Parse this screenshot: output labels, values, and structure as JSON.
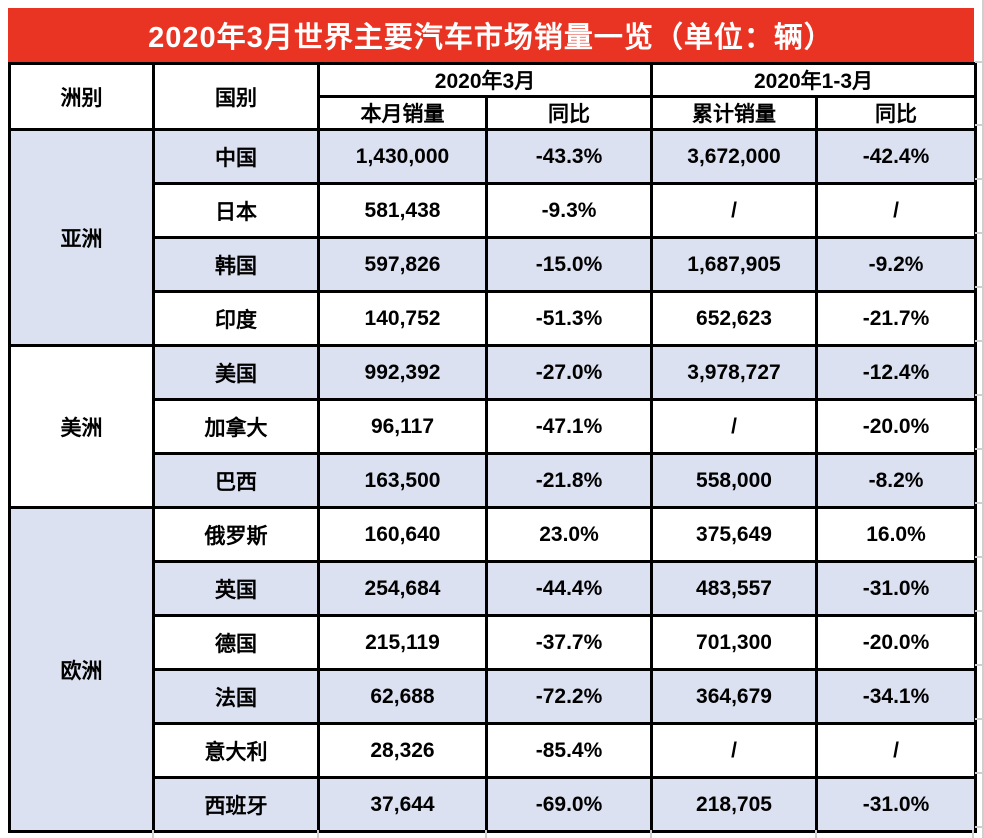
{
  "title": "2020年3月世界主要汽车市场销量一览（单位：辆）",
  "colors": {
    "banner_red": "#E93323",
    "row_shade": "#DCE1F1",
    "border": "#000000",
    "gridline": "#CFCFCF"
  },
  "header": {
    "continent": "洲别",
    "country": "国别",
    "march_group": "2020年3月",
    "q1_group": "2020年1-3月",
    "monthly_sales": "本月销量",
    "monthly_yoy": "同比",
    "cumulative_sales": "累计销量",
    "cumulative_yoy": "同比"
  },
  "groups": [
    {
      "continent": "亚洲",
      "rows": [
        {
          "country": "中国",
          "monthly": "1,430,000",
          "monthly_yoy": "-43.3%",
          "cumulative": "3,672,000",
          "cumulative_yoy": "-42.4%"
        },
        {
          "country": "日本",
          "monthly": "581,438",
          "monthly_yoy": "-9.3%",
          "cumulative": "/",
          "cumulative_yoy": "/"
        },
        {
          "country": "韩国",
          "monthly": "597,826",
          "monthly_yoy": "-15.0%",
          "cumulative": "1,687,905",
          "cumulative_yoy": "-9.2%"
        },
        {
          "country": "印度",
          "monthly": "140,752",
          "monthly_yoy": "-51.3%",
          "cumulative": "652,623",
          "cumulative_yoy": "-21.7%"
        }
      ]
    },
    {
      "continent": "美洲",
      "rows": [
        {
          "country": "美国",
          "monthly": "992,392",
          "monthly_yoy": "-27.0%",
          "cumulative": "3,978,727",
          "cumulative_yoy": "-12.4%"
        },
        {
          "country": "加拿大",
          "monthly": "96,117",
          "monthly_yoy": "-47.1%",
          "cumulative": "/",
          "cumulative_yoy": "-20.0%"
        },
        {
          "country": "巴西",
          "monthly": "163,500",
          "monthly_yoy": "-21.8%",
          "cumulative": "558,000",
          "cumulative_yoy": "-8.2%"
        }
      ]
    },
    {
      "continent": "欧洲",
      "rows": [
        {
          "country": "俄罗斯",
          "monthly": "160,640",
          "monthly_yoy": "23.0%",
          "cumulative": "375,649",
          "cumulative_yoy": "16.0%"
        },
        {
          "country": "英国",
          "monthly": "254,684",
          "monthly_yoy": "-44.4%",
          "cumulative": "483,557",
          "cumulative_yoy": "-31.0%"
        },
        {
          "country": "德国",
          "monthly": "215,119",
          "monthly_yoy": "-37.7%",
          "cumulative": "701,300",
          "cumulative_yoy": "-20.0%"
        },
        {
          "country": "法国",
          "monthly": "62,688",
          "monthly_yoy": "-72.2%",
          "cumulative": "364,679",
          "cumulative_yoy": "-34.1%"
        },
        {
          "country": "意大利",
          "monthly": "28,326",
          "monthly_yoy": "-85.4%",
          "cumulative": "/",
          "cumulative_yoy": "/"
        },
        {
          "country": "西班牙",
          "monthly": "37,644",
          "monthly_yoy": "-69.0%",
          "cumulative": "218,705",
          "cumulative_yoy": "-31.0%"
        }
      ]
    }
  ],
  "chart_data": {
    "type": "table",
    "title": "2020年3月世界主要汽车市场销量一览（单位：辆）",
    "unit": "辆",
    "column_headers": [
      "洲别",
      "国别",
      "2020年3月 本月销量",
      "2020年3月 同比",
      "2020年1-3月 累计销量",
      "2020年1-3月 同比"
    ],
    "rows": [
      [
        "亚洲",
        "中国",
        1430000,
        "-43.3%",
        3672000,
        "-42.4%"
      ],
      [
        "亚洲",
        "日本",
        581438,
        "-9.3%",
        null,
        null
      ],
      [
        "亚洲",
        "韩国",
        597826,
        "-15.0%",
        1687905,
        "-9.2%"
      ],
      [
        "亚洲",
        "印度",
        140752,
        "-51.3%",
        652623,
        "-21.7%"
      ],
      [
        "美洲",
        "美国",
        992392,
        "-27.0%",
        3978727,
        "-12.4%"
      ],
      [
        "美洲",
        "加拿大",
        96117,
        "-47.1%",
        null,
        "-20.0%"
      ],
      [
        "美洲",
        "巴西",
        163500,
        "-21.8%",
        558000,
        "-8.2%"
      ],
      [
        "欧洲",
        "俄罗斯",
        160640,
        "23.0%",
        375649,
        "16.0%"
      ],
      [
        "欧洲",
        "英国",
        254684,
        "-44.4%",
        483557,
        "-31.0%"
      ],
      [
        "欧洲",
        "德国",
        215119,
        "-37.7%",
        701300,
        "-20.0%"
      ],
      [
        "欧洲",
        "法国",
        62688,
        "-72.2%",
        364679,
        "-34.1%"
      ],
      [
        "欧洲",
        "意大利",
        28326,
        "-85.4%",
        null,
        null
      ],
      [
        "欧洲",
        "西班牙",
        37644,
        "-69.0%",
        218705,
        "-31.0%"
      ]
    ]
  }
}
